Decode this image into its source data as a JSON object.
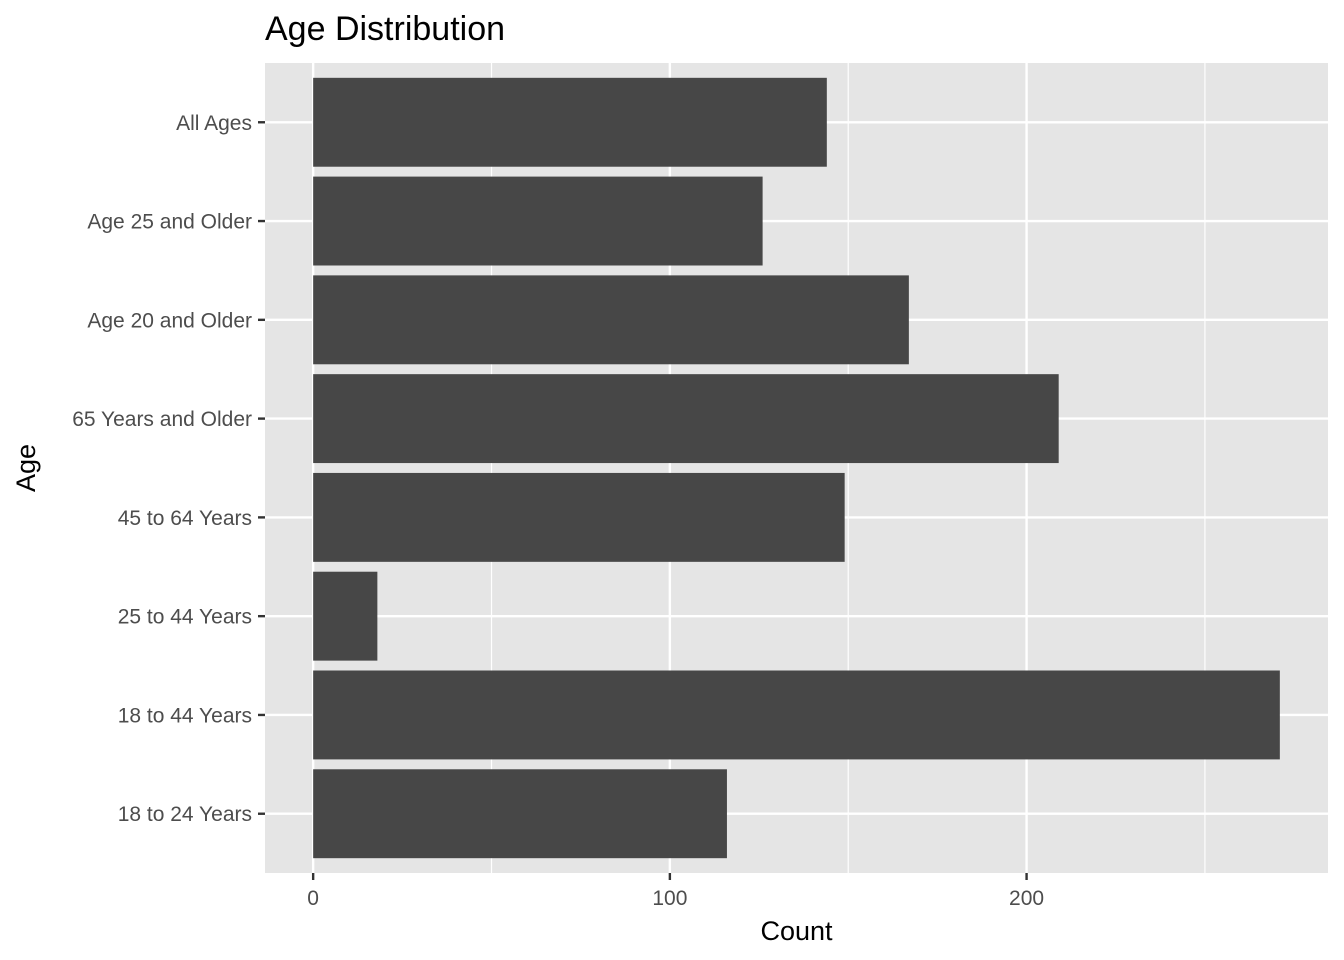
{
  "chart_data": {
    "type": "bar",
    "orientation": "horizontal",
    "title": "Age Distribution",
    "xlabel": "Count",
    "ylabel": "Age",
    "categories": [
      "18 to 24 Years",
      "18 to 44 Years",
      "25 to 44 Years",
      "45 to 64 Years",
      "65 Years and Older",
      "Age 20 and Older",
      "Age 25 and Older",
      "All Ages"
    ],
    "values": [
      116,
      271,
      18,
      149,
      209,
      167,
      126,
      144
    ],
    "xlim": [
      -13.5,
      284.5
    ],
    "xticks": [
      0,
      100,
      200
    ],
    "xtick_labels": [
      "0",
      "100",
      "200"
    ],
    "grid": true,
    "legend": "none",
    "colors": {
      "bar": "#474747",
      "panel": "#e5e5e5",
      "grid": "#ffffff",
      "tick_text": "#4d4d4d",
      "tick_mark": "#333333"
    }
  }
}
